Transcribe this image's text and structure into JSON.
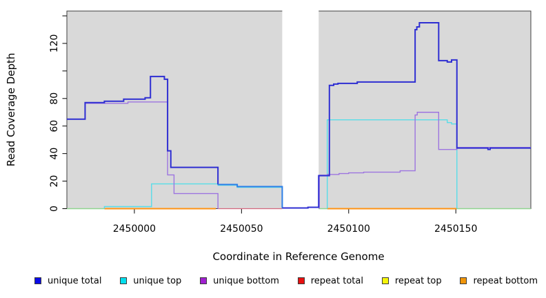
{
  "chart_data": {
    "type": "line",
    "step": true,
    "title": "",
    "xlabel": "Coordinate in Reference Genome",
    "ylabel": "Read Coverage Depth",
    "xlim": [
      2449968.5,
      2450185
    ],
    "ylim": [
      0,
      143.5
    ],
    "grid": false,
    "plot_background": "#d9d9d9",
    "frame_color": "#3f3f3f",
    "no_data_gap": {
      "x0": 2450069,
      "x1": 2450086,
      "color": "#ffffff"
    },
    "x_ticks": [
      {
        "value": 2450000,
        "label": "2450000"
      },
      {
        "value": 2450050,
        "label": "2450050"
      },
      {
        "value": 2450100,
        "label": "2450100"
      },
      {
        "value": 2450150,
        "label": "2450150"
      }
    ],
    "y_ticks": [
      {
        "value": 0,
        "label": "0"
      },
      {
        "value": 20,
        "label": "20"
      },
      {
        "value": 40,
        "label": "40"
      },
      {
        "value": 60,
        "label": "60"
      },
      {
        "value": 80,
        "label": "80"
      },
      {
        "value": 100,
        "label": ""
      },
      {
        "value": 120,
        "label": "120"
      },
      {
        "value": 140,
        "label": ""
      }
    ],
    "series": [
      {
        "name": "zero coverage baseline",
        "color": "#8fd48f",
        "width": 1.5,
        "segments": [
          {
            "points": [
              [
                2449968.5,
                0
              ],
              [
                2449986,
                0
              ]
            ]
          },
          {
            "points": [
              [
                2450086,
                0
              ],
              [
                2450090,
                0
              ]
            ]
          },
          {
            "points": [
              [
                2450150.5,
                0
              ],
              [
                2450185,
                0
              ]
            ]
          }
        ]
      },
      {
        "name": "repeat total",
        "color": "#d4677e",
        "width": 1.2,
        "segments": [
          {
            "points": [
              [
                2450039,
                0
              ],
              [
                2450069,
                0
              ]
            ]
          }
        ]
      },
      {
        "name": "repeat bottom",
        "color": "#ff9214",
        "width": 2,
        "segments": [
          {
            "points": [
              [
                2449986,
                0
              ],
              [
                2450038,
                0
              ]
            ]
          },
          {
            "points": [
              [
                2450090,
                0
              ],
              [
                2450150.5,
                0
              ]
            ]
          }
        ]
      },
      {
        "name": "unique top",
        "color": "#57dde8",
        "width": 1.4,
        "segments": [
          {
            "points": [
              [
                2449986,
                0
              ],
              [
                2449986,
                1.5
              ],
              [
                2450008,
                18
              ],
              [
                2450039,
                17
              ],
              [
                2450048,
                15.5
              ],
              [
                2450069,
                0
              ]
            ]
          },
          {
            "points": [
              [
                2450090,
                0
              ],
              [
                2450090,
                64.5
              ],
              [
                2450146,
                62.5
              ],
              [
                2450148,
                61.5
              ],
              [
                2450150.5,
                61.5
              ],
              [
                2450150.5,
                0
              ]
            ]
          }
        ]
      },
      {
        "name": "unique bottom",
        "color": "#9d74e0",
        "width": 1.4,
        "segments": [
          {
            "points": [
              [
                2449968.5,
                65
              ],
              [
                2449977,
                76.5
              ],
              [
                2449997,
                77.5
              ],
              [
                2450015.5,
                24.5
              ],
              [
                2450018.5,
                11
              ],
              [
                2450039,
                11
              ],
              [
                2450039,
                0
              ]
            ]
          },
          {
            "points": [
              [
                2450086.3,
                0
              ],
              [
                2450086.3,
                24.3
              ],
              [
                2450090,
                24.8
              ],
              [
                2450095.5,
                25.5
              ],
              [
                2450100,
                26
              ],
              [
                2450107,
                26.5
              ],
              [
                2450124,
                27.5
              ],
              [
                2450131,
                68
              ],
              [
                2450132,
                70
              ],
              [
                2450142,
                43
              ],
              [
                2450150.5,
                44.5
              ],
              [
                2450185,
                44.5
              ]
            ]
          }
        ]
      },
      {
        "name": "unique total",
        "color": "#2e2ed2",
        "width": 2,
        "segments": [
          {
            "points": [
              [
                2449968.5,
                65
              ],
              [
                2449977,
                77
              ],
              [
                2449986,
                78
              ],
              [
                2449995,
                79.5
              ],
              [
                2450005,
                80.5
              ],
              [
                2450007.5,
                96
              ],
              [
                2450014,
                94
              ],
              [
                2450015.5,
                42
              ],
              [
                2450017,
                30
              ],
              [
                2450039,
                17.5
              ]
            ]
          },
          {
            "color": "#2e7fe8",
            "points": [
              [
                2450039,
                17.5
              ],
              [
                2450048,
                16
              ],
              [
                2450069,
                0.5
              ]
            ]
          },
          {
            "points": [
              [
                2450069,
                0.5
              ],
              [
                2450081,
                1
              ],
              [
                2450086,
                24
              ],
              [
                2450091,
                89.5
              ],
              [
                2450093,
                90.5
              ],
              [
                2450095,
                91
              ],
              [
                2450104,
                92
              ],
              [
                2450131,
                130
              ],
              [
                2450131.8,
                132
              ],
              [
                2450133,
                135
              ],
              [
                2450142,
                107.5
              ],
              [
                2450146,
                106.5
              ],
              [
                2450148,
                108
              ],
              [
                2450150.5,
                44
              ],
              [
                2450165,
                43
              ],
              [
                2450166,
                44
              ],
              [
                2450185,
                44
              ]
            ]
          }
        ]
      }
    ],
    "legend": {
      "position": "bottom",
      "entries": [
        {
          "label": "unique total",
          "color": "#0a0ae8"
        },
        {
          "label": "unique top",
          "color": "#00dfee"
        },
        {
          "label": "unique bottom",
          "color": "#a020d0"
        },
        {
          "label": "repeat total",
          "color": "#e81010"
        },
        {
          "label": "repeat top",
          "color": "#f5f50a"
        },
        {
          "label": "repeat bottom",
          "color": "#f0950a"
        }
      ]
    }
  }
}
